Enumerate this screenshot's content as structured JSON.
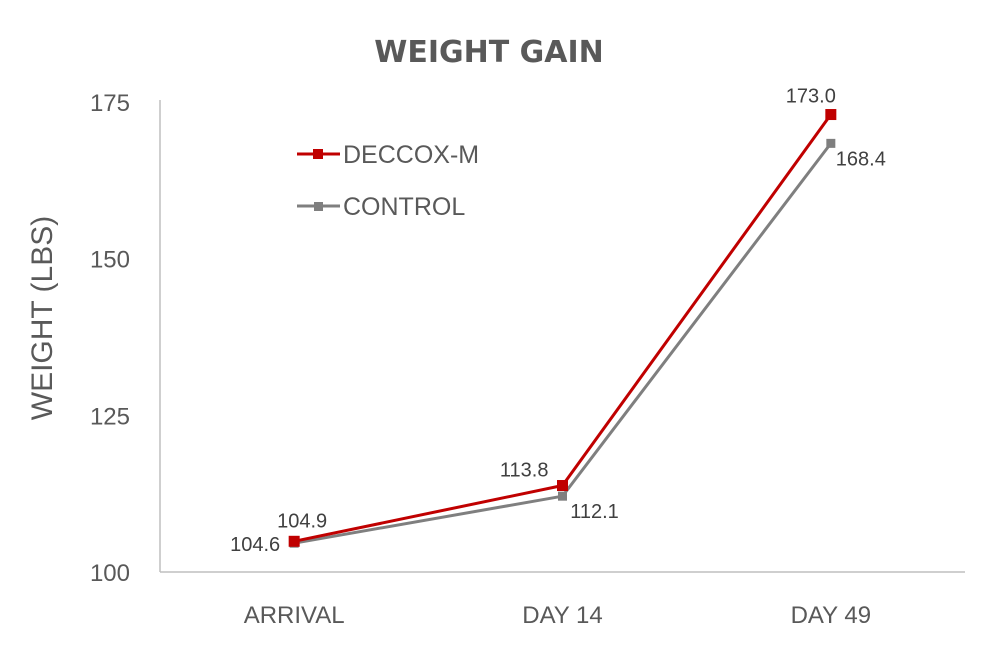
{
  "chart_data": {
    "type": "line",
    "title": "WEIGHT GAIN",
    "xlabel": "",
    "ylabel": "WEIGHT (LBS)",
    "categories": [
      "ARRIVAL",
      "DAY 14",
      "DAY 49"
    ],
    "ylim": [
      100,
      175
    ],
    "yticks": [
      "100",
      "125",
      "150",
      "175"
    ],
    "grid": false,
    "legend_position": "top-left",
    "series": [
      {
        "name": "DECCOX-M",
        "color": "#c00000",
        "values": [
          104.9,
          113.8,
          173.0
        ],
        "labels": [
          "104.9",
          "113.8",
          "173.0"
        ]
      },
      {
        "name": "CONTROL",
        "color": "#7f7f7f",
        "values": [
          104.6,
          112.1,
          168.4
        ],
        "labels": [
          "104.6",
          "112.1",
          "168.4"
        ]
      }
    ]
  }
}
